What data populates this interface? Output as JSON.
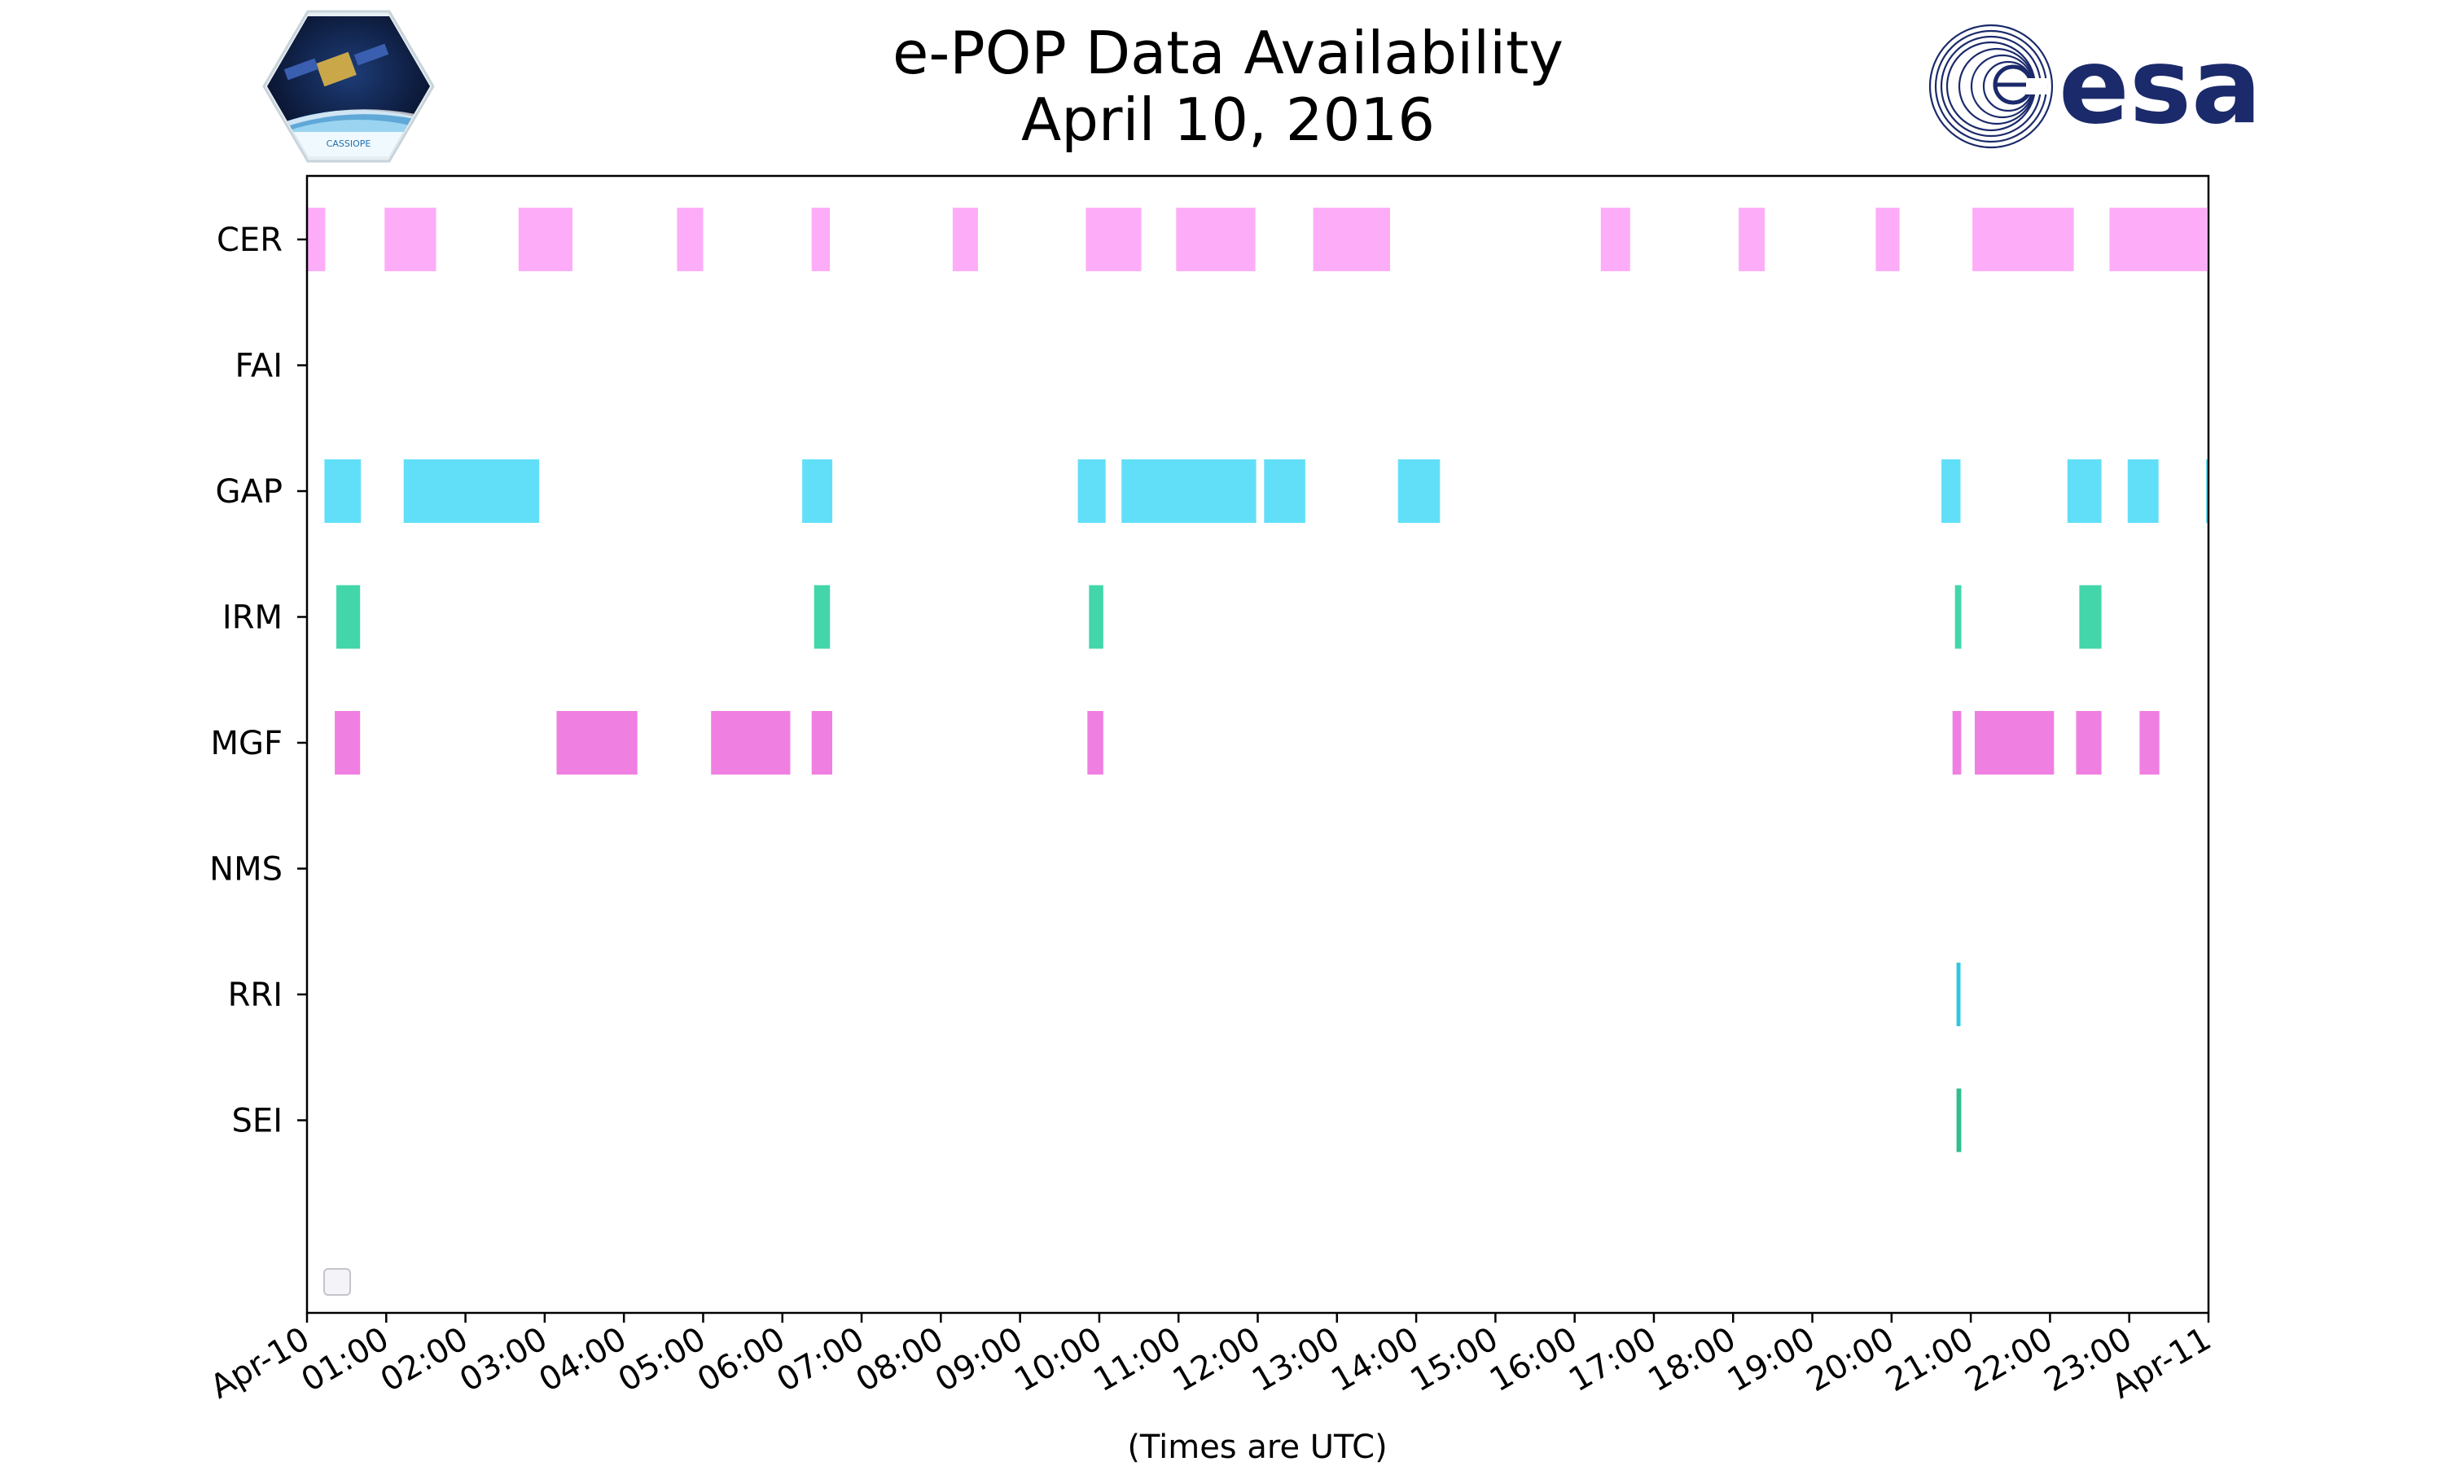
{
  "logos": {
    "left_text": "CASSIOPE",
    "right_text": "esa",
    "right_color": "#1b2a6b"
  },
  "chart_data": {
    "type": "timeline",
    "title_line1": "e-POP Data Availability",
    "title_line2": "April 10, 2016",
    "xlabel": "(Times are UTC)",
    "x_unit": "hours UTC",
    "xlim": [
      0,
      24
    ],
    "x_ticks": [
      {
        "hour": 0,
        "label": "Apr-10"
      },
      {
        "hour": 1,
        "label": "01:00"
      },
      {
        "hour": 2,
        "label": "02:00"
      },
      {
        "hour": 3,
        "label": "03:00"
      },
      {
        "hour": 4,
        "label": "04:00"
      },
      {
        "hour": 5,
        "label": "05:00"
      },
      {
        "hour": 6,
        "label": "06:00"
      },
      {
        "hour": 7,
        "label": "07:00"
      },
      {
        "hour": 8,
        "label": "08:00"
      },
      {
        "hour": 9,
        "label": "09:00"
      },
      {
        "hour": 10,
        "label": "10:00"
      },
      {
        "hour": 11,
        "label": "11:00"
      },
      {
        "hour": 12,
        "label": "12:00"
      },
      {
        "hour": 13,
        "label": "13:00"
      },
      {
        "hour": 14,
        "label": "14:00"
      },
      {
        "hour": 15,
        "label": "15:00"
      },
      {
        "hour": 16,
        "label": "16:00"
      },
      {
        "hour": 17,
        "label": "17:00"
      },
      {
        "hour": 18,
        "label": "18:00"
      },
      {
        "hour": 19,
        "label": "19:00"
      },
      {
        "hour": 20,
        "label": "20:00"
      },
      {
        "hour": 21,
        "label": "21:00"
      },
      {
        "hour": 22,
        "label": "22:00"
      },
      {
        "hour": 23,
        "label": "23:00"
      },
      {
        "hour": 24,
        "label": "Apr-11"
      }
    ],
    "grid": false,
    "legend": "bottom-left (empty)",
    "instruments": [
      {
        "name": "CER",
        "color": "#fdadf8",
        "intervals": [
          [
            0.0,
            0.23
          ],
          [
            0.98,
            1.63
          ],
          [
            2.67,
            3.35
          ],
          [
            4.67,
            5.0
          ],
          [
            6.37,
            6.6
          ],
          [
            8.15,
            8.47
          ],
          [
            9.83,
            10.53
          ],
          [
            10.97,
            11.97
          ],
          [
            12.7,
            13.67
          ],
          [
            16.33,
            16.7
          ],
          [
            18.07,
            18.4
          ],
          [
            19.8,
            20.1
          ],
          [
            21.02,
            22.3
          ],
          [
            22.75,
            23.98
          ]
        ]
      },
      {
        "name": "FAI",
        "color": "#ffffff",
        "intervals": []
      },
      {
        "name": "GAP",
        "color": "#62dff8",
        "intervals": [
          [
            0.22,
            0.68
          ],
          [
            1.22,
            2.93
          ],
          [
            6.25,
            6.63
          ],
          [
            9.73,
            10.08
          ],
          [
            10.28,
            11.98
          ],
          [
            12.08,
            12.6
          ],
          [
            13.77,
            14.3
          ],
          [
            20.63,
            20.87
          ],
          [
            22.22,
            22.65
          ],
          [
            22.98,
            23.37
          ],
          [
            23.97,
            24.0
          ]
        ]
      },
      {
        "name": "IRM",
        "color": "#42d6aa",
        "intervals": [
          [
            0.37,
            0.67
          ],
          [
            6.4,
            6.6
          ],
          [
            9.87,
            10.05
          ],
          [
            20.8,
            20.88
          ],
          [
            22.37,
            22.65
          ]
        ]
      },
      {
        "name": "MGF",
        "color": "#f07fe2",
        "intervals": [
          [
            0.35,
            0.67
          ],
          [
            3.15,
            4.17
          ],
          [
            5.1,
            6.1
          ],
          [
            6.37,
            6.63
          ],
          [
            9.85,
            10.05
          ],
          [
            20.77,
            20.88
          ],
          [
            21.05,
            22.05
          ],
          [
            22.33,
            22.65
          ],
          [
            23.13,
            23.38
          ]
        ]
      },
      {
        "name": "NMS",
        "color": "#ffffff",
        "intervals": []
      },
      {
        "name": "RRI",
        "color": "#30c8e0",
        "intervals": [
          [
            20.82,
            20.87
          ]
        ]
      },
      {
        "name": "SEI",
        "color": "#2fbf8c",
        "intervals": [
          [
            20.82,
            20.88
          ]
        ]
      }
    ]
  }
}
